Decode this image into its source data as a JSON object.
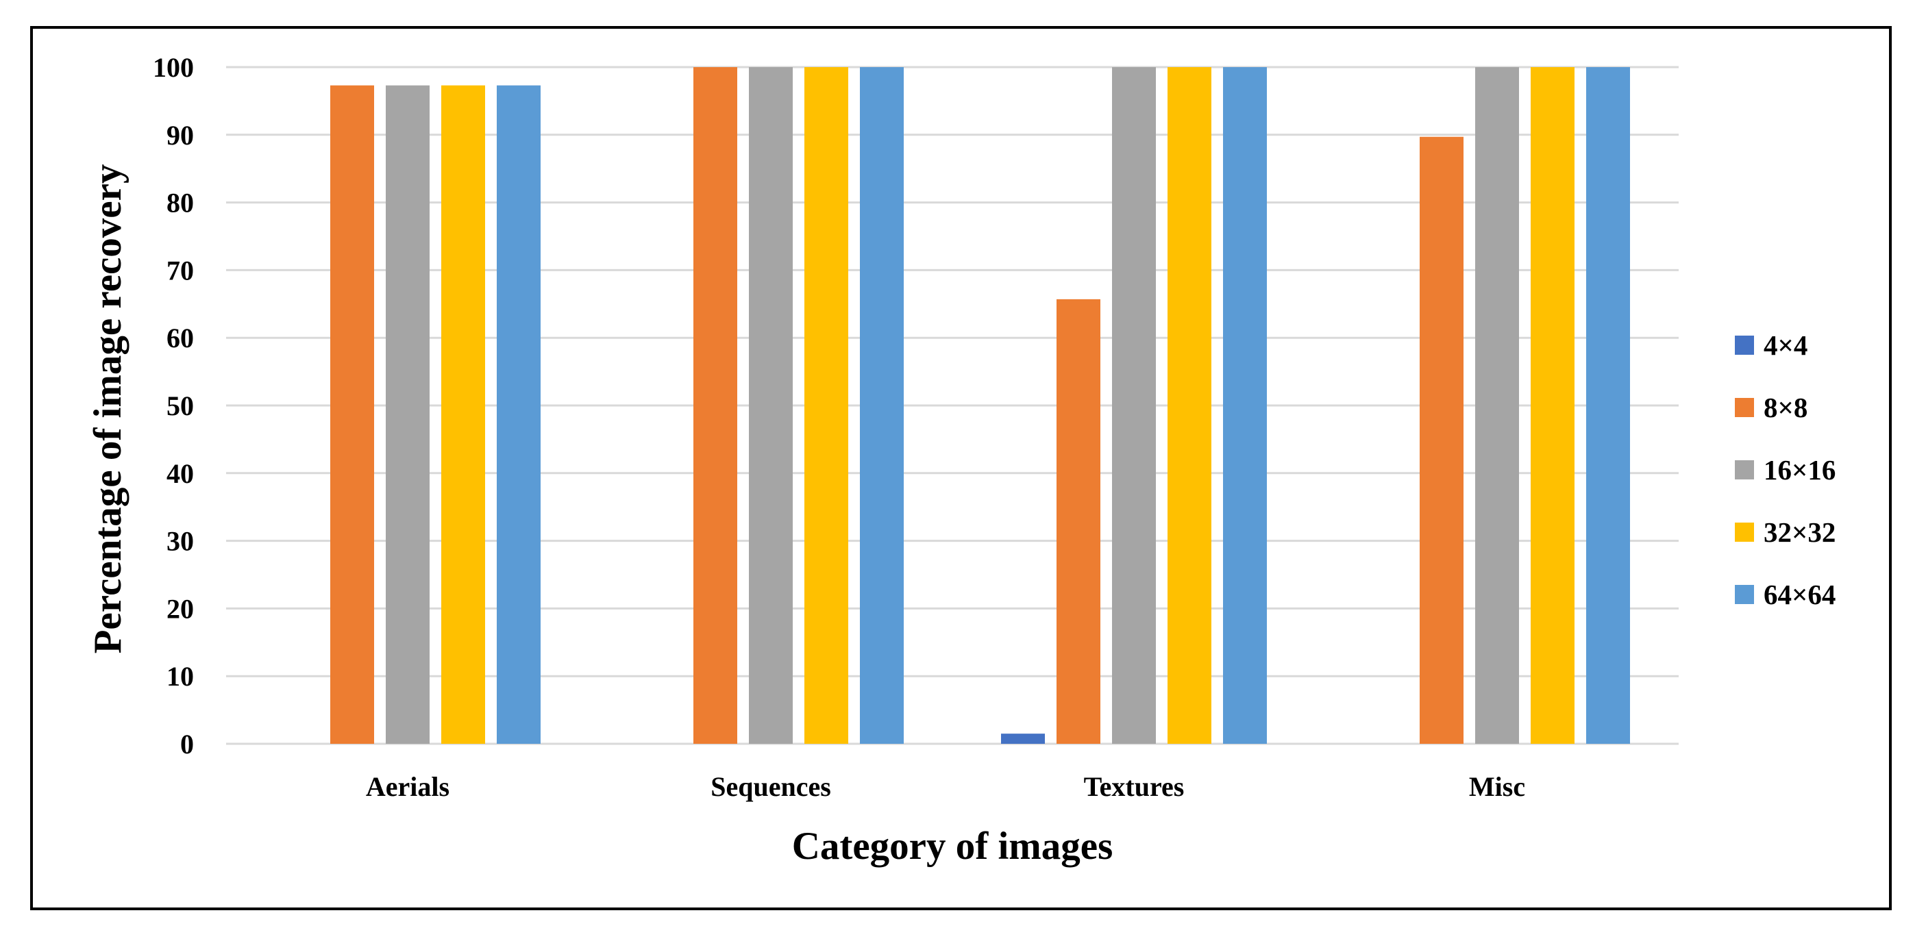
{
  "chart_data": {
    "type": "bar",
    "title": "",
    "xlabel": "Category of images",
    "ylabel": "Percentage of image recovery",
    "categories": [
      "Aerials",
      "Sequences",
      "Textures",
      "Misc"
    ],
    "ylim": [
      0,
      100
    ],
    "yticks": [
      "0",
      "10",
      "20",
      "30",
      "40",
      "50",
      "60",
      "70",
      "80",
      "90",
      "100"
    ],
    "grid": true,
    "legend_position": "right",
    "series": [
      {
        "name": "4×4",
        "color": "#4472C4",
        "values": [
          0,
          0,
          1.5,
          0
        ]
      },
      {
        "name": "8×8",
        "color": "#ED7D31",
        "values": [
          97.3,
          100,
          65.7,
          89.7
        ]
      },
      {
        "name": "16×16",
        "color": "#A5A5A5",
        "values": [
          97.3,
          100,
          100,
          100
        ]
      },
      {
        "name": "32×32",
        "color": "#FFC000",
        "values": [
          97.3,
          100,
          100,
          100
        ]
      },
      {
        "name": "64×64",
        "color": "#5B9BD5",
        "values": [
          97.3,
          100,
          100,
          100
        ]
      }
    ]
  }
}
